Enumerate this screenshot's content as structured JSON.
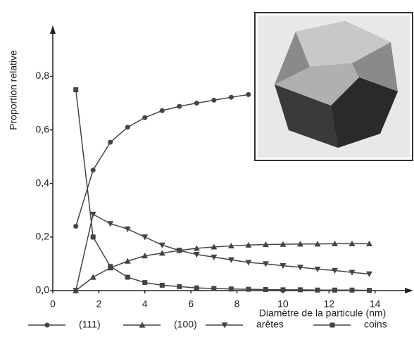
{
  "chart_data": {
    "type": "line",
    "x_label": "Diamètre de la particule (nm)",
    "y_label": "Proportion relative",
    "x": [
      1,
      1.75,
      2.5,
      3.25,
      4,
      4.75,
      5.5,
      6.25,
      7,
      7.75,
      8.5,
      9.25,
      10,
      10.75,
      11.5,
      12.25,
      13,
      13.75
    ],
    "series": [
      {
        "name": "(111)",
        "color": "#444444",
        "marker": "o",
        "values": [
          0.24,
          0.45,
          0.554,
          0.61,
          0.646,
          0.672,
          0.688,
          0.7,
          0.711,
          0.722,
          0.732,
          null,
          null,
          null,
          null,
          null,
          null,
          null
        ]
      },
      {
        "name": "(100)",
        "color": "#444444",
        "marker": "^",
        "values": [
          0,
          0.05,
          0.085,
          0.11,
          0.13,
          0.14,
          0.15,
          0.158,
          0.163,
          0.167,
          0.17,
          0.172,
          0.173,
          0.174,
          0.174,
          0.175,
          0.175,
          0.175
        ]
      },
      {
        "name": "arêtes",
        "color": "#444444",
        "marker": "v",
        "values": [
          0,
          0.285,
          0.25,
          0.23,
          0.2,
          0.17,
          0.15,
          0.135,
          0.125,
          0.115,
          0.105,
          0.1,
          0.093,
          0.087,
          0.08,
          0.075,
          0.068,
          0.062
        ]
      },
      {
        "name": "coins",
        "color": "#444444",
        "marker": "s",
        "values": [
          0.75,
          0.2,
          0.09,
          0.05,
          0.03,
          0.02,
          0.015,
          0.01,
          0.008,
          0.006,
          0.005,
          0.004,
          0.003,
          0.003,
          0.002,
          0.002,
          0.002,
          0.001
        ]
      }
    ],
    "xlim": [
      0,
      15.6
    ],
    "ylim": [
      0,
      0.98
    ],
    "xticks": [
      0,
      2,
      4,
      6,
      8,
      10,
      12,
      14
    ],
    "yticks": [
      {
        "value": 0,
        "label": "0,0"
      },
      {
        "value": 0.2,
        "label": "0,2"
      },
      {
        "value": 0.4,
        "label": "0,4"
      },
      {
        "value": 0.6,
        "label": "0,6"
      },
      {
        "value": 0.8,
        "label": "0,8"
      }
    ]
  }
}
